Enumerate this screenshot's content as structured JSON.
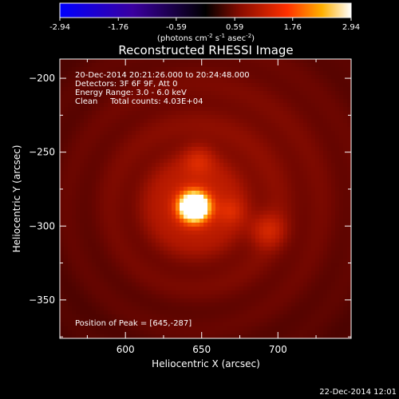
{
  "chart_data": {
    "type": "heatmap",
    "title": "Reconstructed RHESSI Image",
    "xlabel": "Heliocentric X (arcsec)",
    "ylabel": "Heliocentric Y (arcsec)",
    "xlim": [
      557,
      748
    ],
    "ylim": [
      -376,
      -187
    ],
    "x_ticks": [
      600,
      650,
      700
    ],
    "y_ticks": [
      -200,
      -250,
      -300,
      -350
    ],
    "colorbar": {
      "ticks": [
        "-2.94",
        "-1.76",
        "-0.59",
        "0.59",
        "1.76",
        "2.94"
      ],
      "range": [
        -2.94,
        2.94
      ],
      "units_label": "(photons cm",
      "units_exp1": "-2",
      "units_mid": " s",
      "units_exp2": "-1",
      "units_mid2": " asec",
      "units_exp3": "-2",
      "units_close": ")"
    },
    "annotations": [
      "20-Dec-2014 20:21:26.000 to 20:24:48.000",
      "Detectors: 3F 6F 9F, Att 0",
      "Energy Range: 3.0 - 6.0 keV",
      "Clean     Total counts: 4.03E+04"
    ],
    "peak_label": "Position of Peak = [645,-287]",
    "peak": [
      645,
      -287
    ],
    "sources": [
      {
        "x": 645,
        "y": -287,
        "amplitude": 2.94,
        "sigma": 7
      },
      {
        "x": 645,
        "y": -287,
        "amplitude": 0.9,
        "sigma": 18
      },
      {
        "x": 648,
        "y": -255,
        "amplitude": 0.55,
        "sigma": 7
      },
      {
        "x": 669,
        "y": -290,
        "amplitude": 0.45,
        "sigma": 6
      },
      {
        "x": 693,
        "y": -303,
        "amplitude": 0.75,
        "sigma": 8
      },
      {
        "x": 660,
        "y": -270,
        "amplitude": 0.6,
        "sigma": 80
      }
    ],
    "background": 0.15
  },
  "footer_date": "22-Dec-2014 12:01"
}
